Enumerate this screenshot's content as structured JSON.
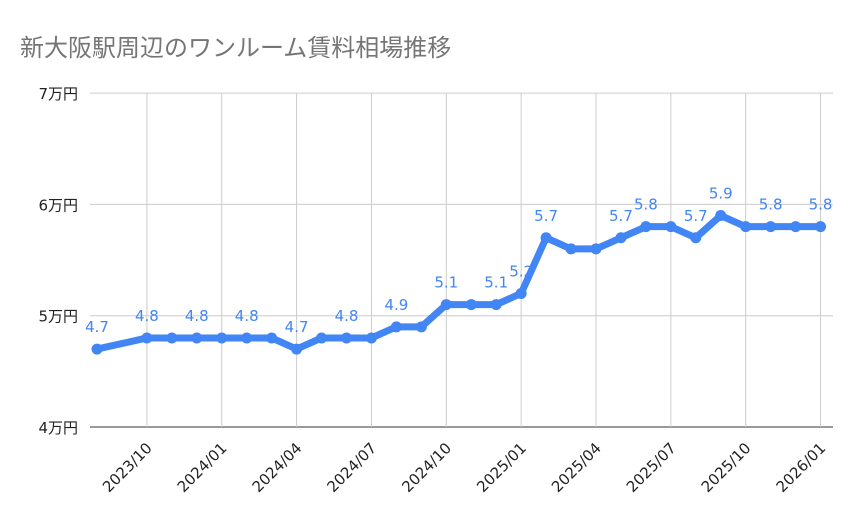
{
  "chart_data": {
    "type": "line",
    "title": "新大阪駅周辺のワンルーム賃料相場推移",
    "x": [
      "2023/08",
      "2023/10",
      "2023/11",
      "2023/12",
      "2024/01",
      "2024/02",
      "2024/03",
      "2024/04",
      "2024/05",
      "2024/06",
      "2024/07",
      "2024/08",
      "2024/09",
      "2024/10",
      "2024/11",
      "2024/12",
      "2025/01",
      "2025/02",
      "2025/03",
      "2025/04",
      "2025/05",
      "2025/06",
      "2025/07",
      "2025/08",
      "2025/09",
      "2025/10",
      "2025/11",
      "2025/12",
      "2026/01"
    ],
    "values": [
      4.7,
      4.8,
      4.8,
      4.8,
      4.8,
      4.8,
      4.8,
      4.7,
      4.8,
      4.8,
      4.8,
      4.9,
      4.9,
      5.1,
      5.1,
      5.1,
      5.2,
      5.7,
      5.6,
      5.6,
      5.7,
      5.8,
      5.8,
      5.7,
      5.9,
      5.8,
      5.8,
      5.8,
      5.8
    ],
    "labeled_points": [
      "2023/08",
      "2023/10",
      "2023/12",
      "2024/02",
      "2024/04",
      "2024/06",
      "2024/08",
      "2024/10",
      "2024/12",
      "2025/01",
      "2025/02",
      "2025/05",
      "2025/06",
      "2025/08",
      "2025/09",
      "2025/11",
      "2026/01"
    ],
    "ylim": [
      4,
      7
    ],
    "yticks": [
      4,
      5,
      6,
      7
    ],
    "ytick_labels": [
      "4万円",
      "5万円",
      "6万円",
      "7万円"
    ],
    "xtick_labels": [
      "2023/10",
      "2024/01",
      "2024/04",
      "2024/07",
      "2024/10",
      "2025/01",
      "2025/04",
      "2025/07",
      "2025/10",
      "2026/01"
    ],
    "grid": true,
    "colors": {
      "line": "#4285f4",
      "label": "#4285f4",
      "grid": "#cccccc"
    }
  }
}
